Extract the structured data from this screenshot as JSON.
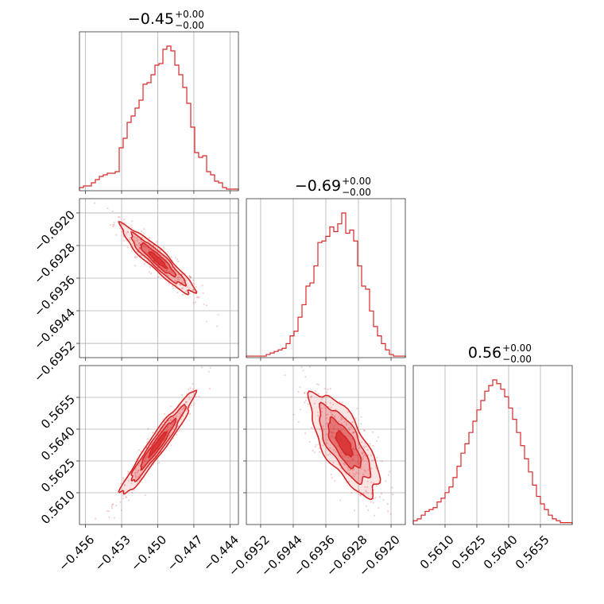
{
  "chart_data": {
    "type": "corner",
    "color": "#d62728",
    "parameters": [
      {
        "title": {
          "value": "−0.45",
          "upper": "+0.00",
          "lower": "−0.00"
        },
        "range": [
          -0.4565,
          -0.4433
        ],
        "ticks": [
          -0.456,
          -0.453,
          -0.45,
          -0.447,
          -0.444
        ],
        "tick_labels": [
          "−0.456",
          "−0.453",
          "−0.450",
          "−0.447",
          "−0.444"
        ],
        "hist": [
          2,
          3,
          3,
          5,
          7,
          9,
          10,
          11,
          11,
          12,
          27,
          33,
          43,
          47,
          52,
          57,
          67,
          68,
          73,
          79,
          80,
          89,
          91,
          88,
          79,
          73,
          65,
          55,
          40,
          24,
          21,
          22,
          12,
          10,
          6,
          5,
          2,
          1,
          1,
          1
        ]
      },
      {
        "title": {
          "value": "−0.69",
          "upper": "+0.00",
          "lower": "−0.00"
        },
        "range": [
          -0.69555,
          -0.69165
        ],
        "ticks": [
          -0.6952,
          -0.6944,
          -0.6936,
          -0.6928,
          -0.692
        ],
        "tick_labels": [
          "−0.6952",
          "−0.6944",
          "−0.6936",
          "−0.6928",
          "−0.6920"
        ],
        "hist": [
          1,
          1,
          1,
          1,
          1,
          2,
          3,
          4,
          5,
          6,
          9,
          14,
          17,
          26,
          34,
          46,
          48,
          59,
          74,
          75,
          78,
          84,
          81,
          86,
          93,
          80,
          82,
          75,
          59,
          46,
          44,
          30,
          20,
          14,
          9,
          5,
          2,
          1,
          1,
          1
        ]
      },
      {
        "title": {
          "value": "0.56",
          "upper": "+0.00",
          "lower": "−0.00"
        },
        "range": [
          0.5595,
          0.567
        ],
        "ticks": [
          0.561,
          0.5625,
          0.564,
          0.5655
        ],
        "tick_labels": [
          "0.5610",
          "0.5625",
          "0.5640",
          "0.5655"
        ],
        "hist": [
          2,
          3,
          5,
          7,
          8,
          9,
          12,
          14,
          17,
          20,
          25,
          31,
          38,
          43,
          49,
          55,
          61,
          66,
          71,
          74,
          77,
          75,
          72,
          68,
          62,
          56,
          49,
          42,
          35,
          28,
          21,
          15,
          11,
          8,
          5,
          3,
          2,
          1,
          1,
          1
        ]
      }
    ],
    "pairs": [
      {
        "x": 0,
        "y": 1,
        "mean": [
          -0.45,
          -0.69315
        ],
        "sd": [
          0.00145,
          0.0004
        ],
        "corr": -0.93
      },
      {
        "x": 0,
        "y": 2,
        "mean": [
          -0.45,
          0.5633
        ],
        "sd": [
          0.00145,
          0.00115
        ],
        "corr": 0.96
      },
      {
        "x": 1,
        "y": 2,
        "mean": [
          -0.69315,
          0.5633
        ],
        "sd": [
          0.0004,
          0.00115
        ],
        "corr": -0.72
      }
    ]
  }
}
